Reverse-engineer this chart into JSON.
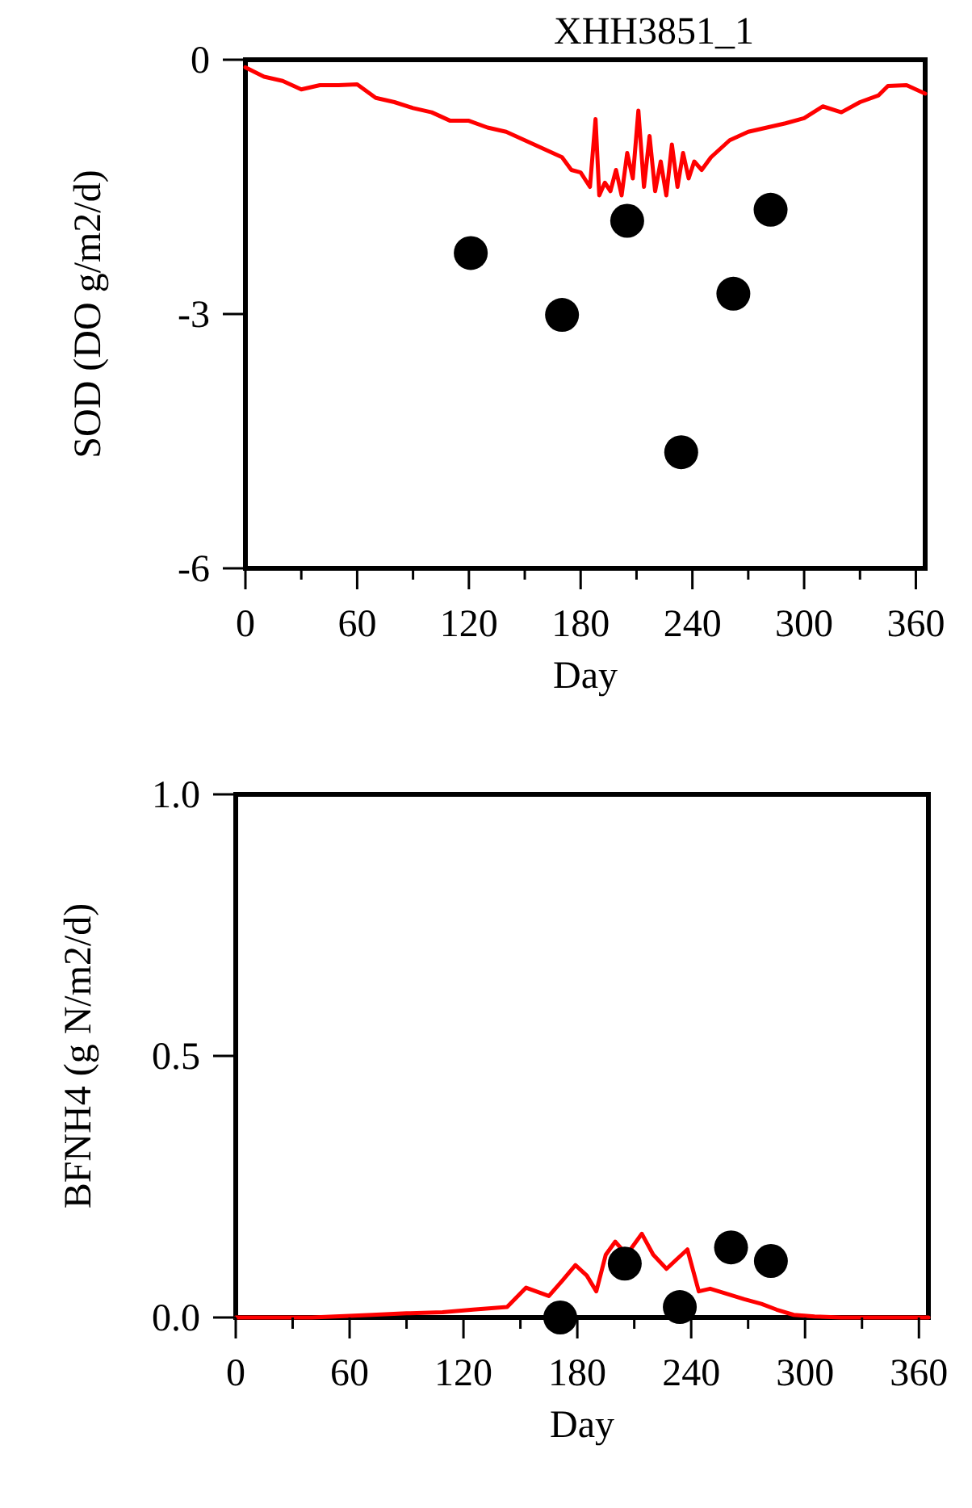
{
  "chart_data": [
    {
      "type": "line",
      "title": "XHH3851_1",
      "xlabel": "Day",
      "ylabel": "SOD (DO g/m2/d)",
      "xlim": [
        0,
        365
      ],
      "ylim": [
        -6,
        0
      ],
      "xticks": [
        0,
        {
          "value": 30,
          "label": null
        },
        60,
        {
          "value": 90,
          "label": null
        },
        120,
        {
          "value": 150,
          "label": null
        },
        180,
        {
          "value": 210,
          "label": null
        },
        240,
        {
          "value": 270,
          "label": null
        },
        300,
        {
          "value": 330,
          "label": null
        },
        360
      ],
      "yticks": [
        -6,
        -3,
        0
      ],
      "grid": false,
      "series": [
        {
          "color": "#ff0000",
          "line_style": "solid",
          "x": [
            0,
            10,
            20,
            30,
            40,
            50,
            60,
            70,
            80,
            90,
            100,
            110,
            120,
            130,
            140,
            150,
            160,
            170,
            175,
            180,
            185,
            188,
            190,
            193,
            196,
            199,
            202,
            205,
            208,
            211,
            214,
            217,
            220,
            223,
            226,
            229,
            232,
            235,
            238,
            241,
            245,
            250,
            255,
            260,
            270,
            280,
            290,
            300,
            310,
            320,
            330,
            340,
            345,
            355,
            365
          ],
          "values": [
            -0.09,
            -0.2,
            -0.25,
            -0.35,
            -0.3,
            -0.3,
            -0.29,
            -0.45,
            -0.5,
            -0.57,
            -0.62,
            -0.72,
            -0.72,
            -0.8,
            -0.85,
            -0.95,
            -1.05,
            -1.15,
            -1.3,
            -1.33,
            -1.5,
            -0.7,
            -1.6,
            -1.45,
            -1.55,
            -1.3,
            -1.6,
            -1.1,
            -1.4,
            -0.6,
            -1.5,
            -0.9,
            -1.55,
            -1.2,
            -1.6,
            -1.0,
            -1.5,
            -1.1,
            -1.4,
            -1.2,
            -1.3,
            -1.15,
            -1.05,
            -0.95,
            -0.85,
            -0.8,
            -0.75,
            -0.69,
            -0.55,
            -0.62,
            -0.5,
            -0.42,
            -0.31,
            -0.3,
            -0.4
          ]
        },
        {
          "type": "scatter",
          "color": "#000000",
          "marker": "circle",
          "x": [
            121,
            170,
            205,
            234,
            262,
            282
          ],
          "values": [
            -2.28,
            -3.01,
            -1.9,
            -4.63,
            -2.76,
            -1.77
          ]
        }
      ]
    },
    {
      "type": "line",
      "xlabel": "Day",
      "ylabel": "BFNH4 (g N/m2/d)",
      "xlim": [
        0,
        365
      ],
      "ylim": [
        0,
        1
      ],
      "xticks": [
        0,
        {
          "value": 30,
          "label": null
        },
        60,
        {
          "value": 90,
          "label": null
        },
        120,
        {
          "value": 150,
          "label": null
        },
        180,
        {
          "value": 210,
          "label": null
        },
        240,
        {
          "value": 270,
          "label": null
        },
        300,
        {
          "value": 330,
          "label": null
        },
        360
      ],
      "yticks": [
        {
          "value": 0,
          "label": "0.0"
        },
        {
          "value": 0.5,
          "label": "0.5"
        },
        {
          "value": 1,
          "label": "1.0"
        }
      ],
      "grid": false,
      "series": [
        {
          "color": "#ff0000",
          "line_style": "solid",
          "x": [
            0,
            40,
            72,
            90,
            109,
            125,
            143,
            153,
            165,
            172,
            179,
            185,
            190,
            195,
            200,
            206,
            210,
            214,
            220,
            227,
            232,
            238,
            244,
            250,
            258,
            268,
            277,
            285,
            294,
            305,
            319,
            340,
            365
          ],
          "values": [
            0,
            0,
            0.005,
            0.008,
            0.01,
            0.015,
            0.02,
            0.057,
            0.041,
            0.07,
            0.1,
            0.08,
            0.05,
            0.12,
            0.145,
            0.12,
            0.14,
            0.16,
            0.12,
            0.093,
            0.11,
            0.13,
            0.05,
            0.055,
            0.046,
            0.035,
            0.026,
            0.015,
            0.005,
            0.002,
            0,
            0,
            0
          ]
        },
        {
          "type": "scatter",
          "color": "#000000",
          "marker": "circle",
          "x": [
            171,
            205,
            234,
            261,
            282
          ],
          "values": [
            0.0,
            0.103,
            0.02,
            0.134,
            0.108
          ]
        }
      ]
    }
  ]
}
